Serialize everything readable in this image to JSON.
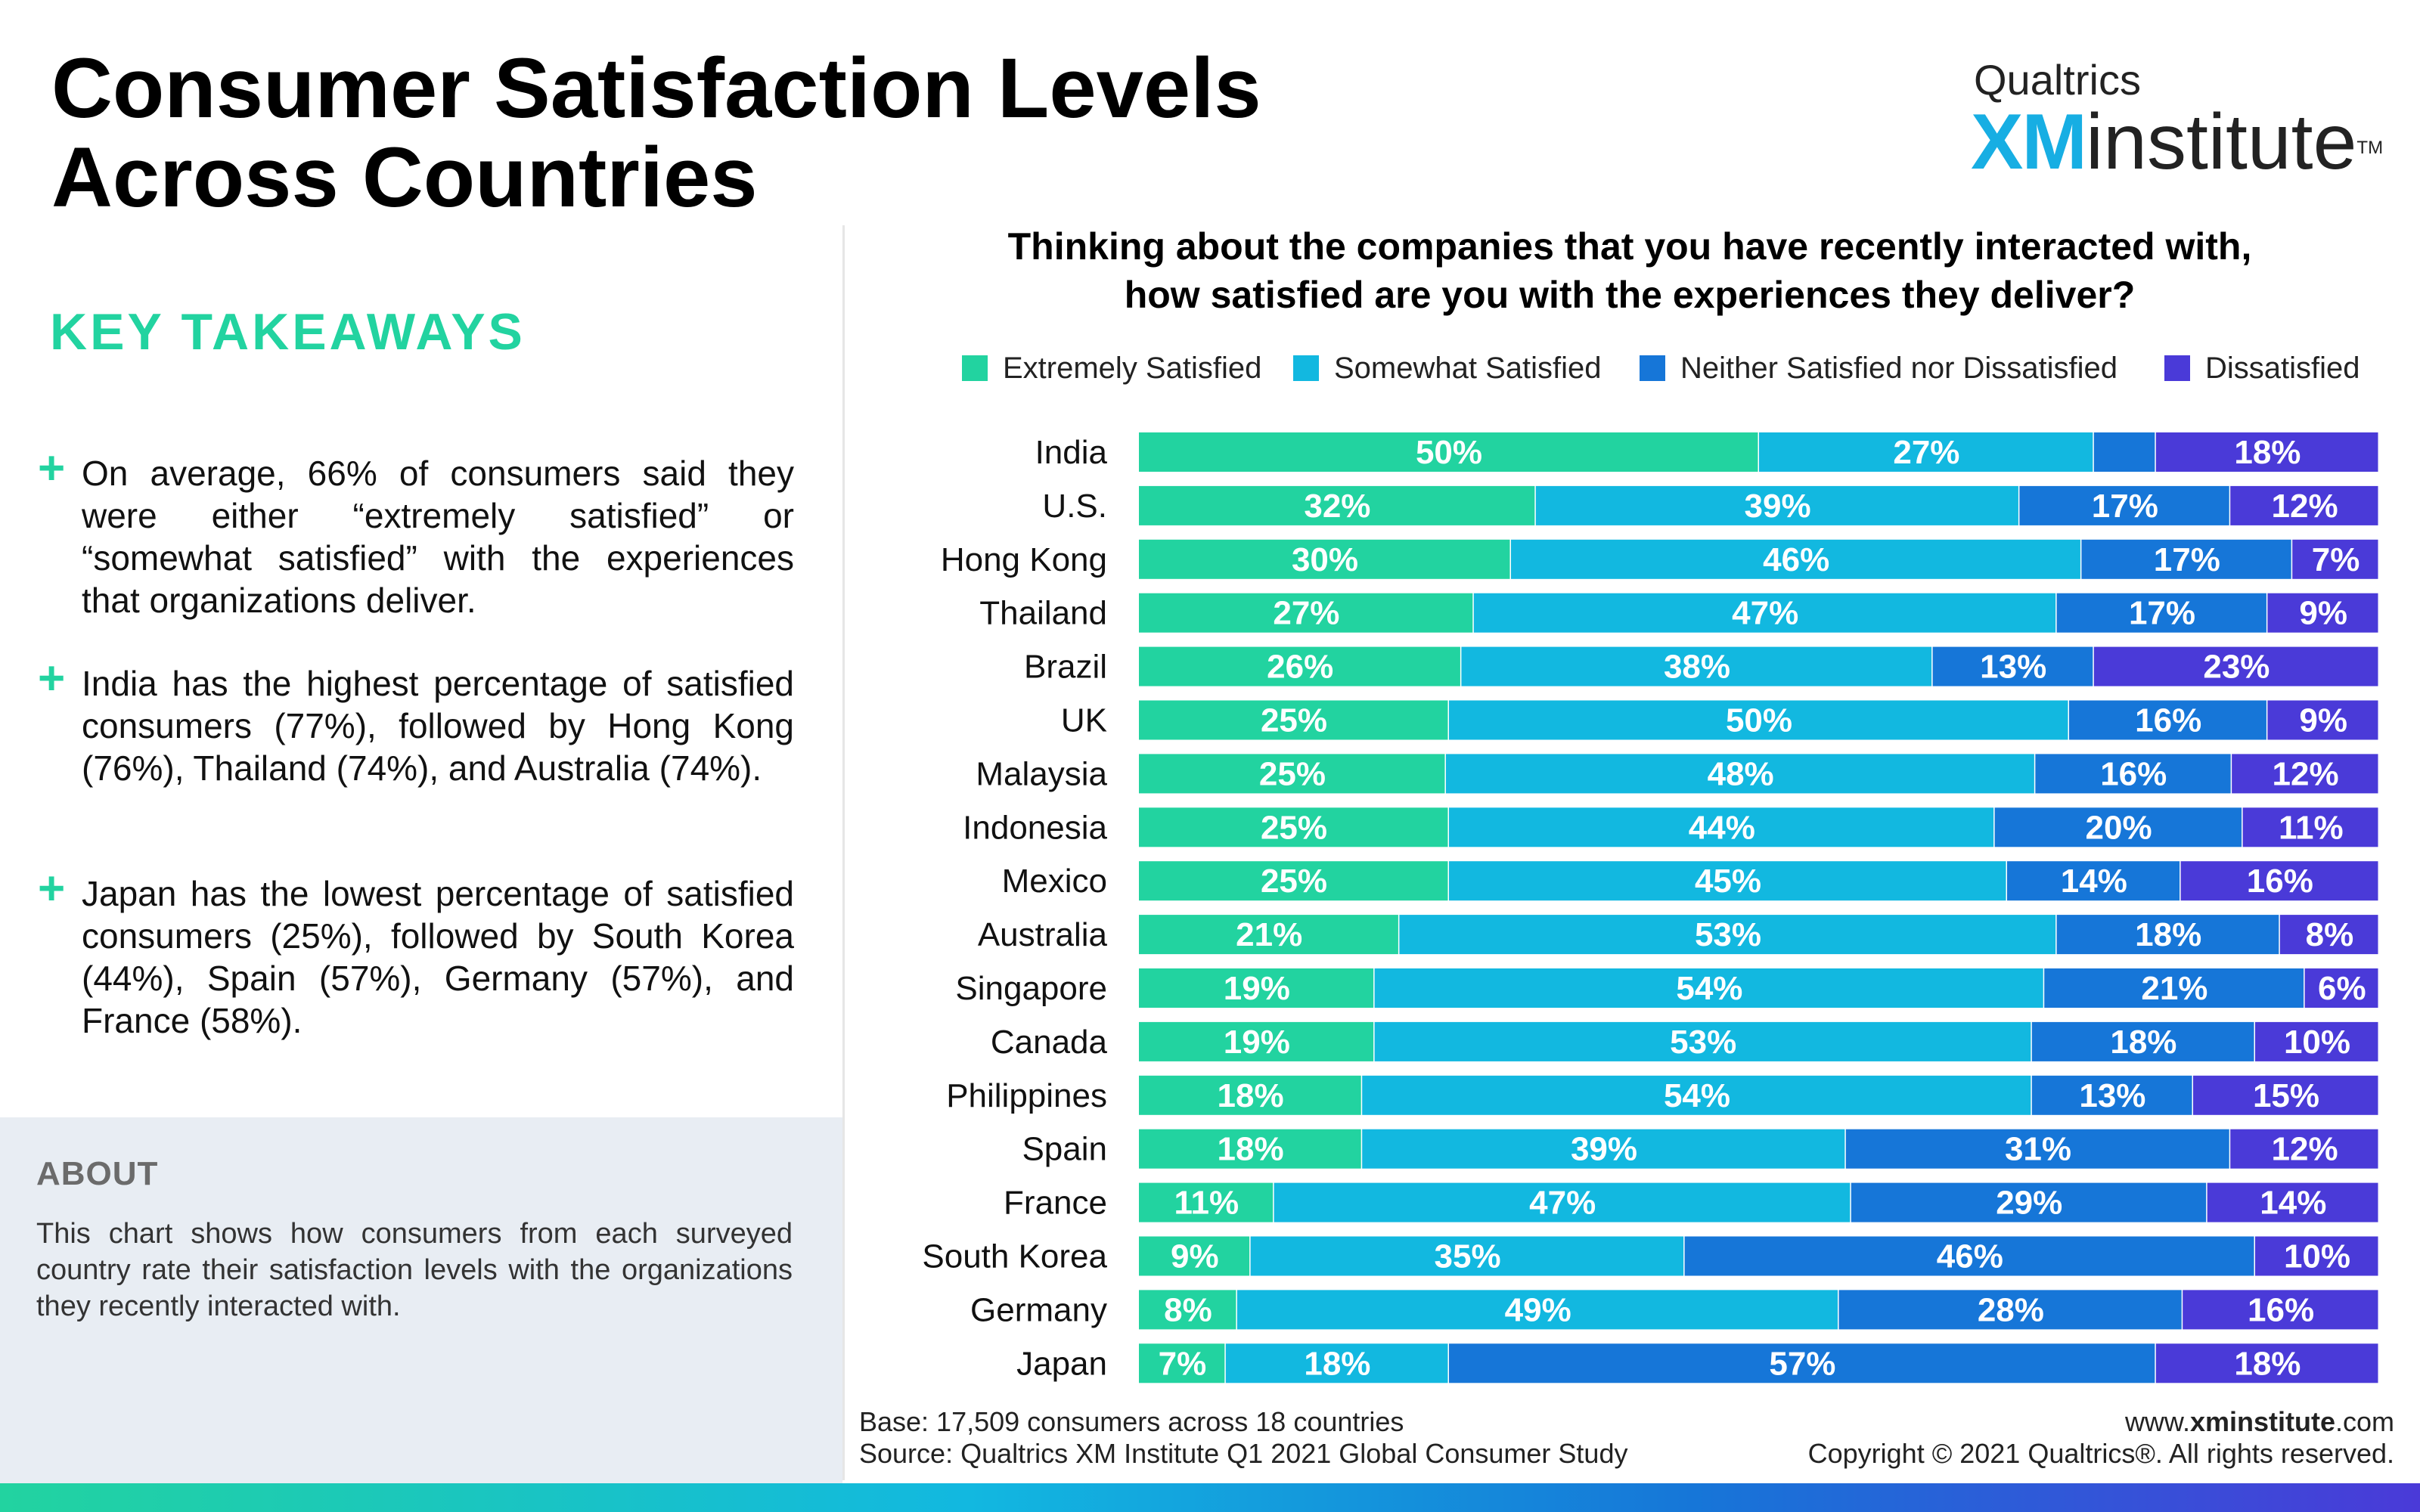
{
  "title_line1": "Consumer Satisfaction Levels",
  "title_line2": "Across Countries",
  "brand": {
    "company": "Qualtrics",
    "xm": "XM",
    "institute": "institute",
    "tm": "TM"
  },
  "takeaways": {
    "heading": "KEY TAKEAWAYS",
    "items": [
      "On average, 66% of consumers said they were either “extremely satisfied” or “somewhat satisfied” with the experiences that organizations deliver.",
      "India has the highest percentage of satisfied consumers (77%), followed by Hong Kong (76%), Thailand (74%), and Australia (74%).",
      "Japan has the lowest percentage of satisfied consumers (25%), followed by South Korea (44%), Spain (57%), Germany (57%), and France (58%)."
    ]
  },
  "about": {
    "heading": "ABOUT",
    "text": "This chart shows how consumers from each surveyed country rate their satisfaction levels with the organizations they recently interacted with."
  },
  "footer": {
    "base": "Base: 17,509 consumers across 18 countries",
    "source": "Source: Qualtrics XM Institute Q1 2021 Global Consumer Study",
    "url_prefix": "www.",
    "url_bold": "xminstitute",
    "url_suffix": ".com",
    "copyright": "Copyright © 2021 Qualtrics®. All rights reserved."
  },
  "colors": {
    "extremely_satisfied": "#22d3a0",
    "somewhat_satisfied": "#12b8e0",
    "neither": "#1676d8",
    "dissatisfied": "#4a3ad8",
    "takeaway_accent": "#22d3a0"
  },
  "chart_data": {
    "type": "bar",
    "orientation": "horizontal",
    "stacked": true,
    "title_line1": "Thinking about the companies that you have recently interacted with,",
    "title_line2": "how satisfied are you with the experiences they deliver?",
    "legend_position": "top",
    "grid": false,
    "categories": [
      "India",
      "U.S.",
      "Hong Kong",
      "Thailand",
      "Brazil",
      "UK",
      "Malaysia",
      "Indonesia",
      "Mexico",
      "Australia",
      "Singapore",
      "Canada",
      "Philippines",
      "Spain",
      "France",
      "South Korea",
      "Germany",
      "Japan"
    ],
    "series": [
      {
        "name": "Extremely Satisfied",
        "values": [
          50,
          32,
          30,
          27,
          26,
          25,
          25,
          25,
          25,
          21,
          19,
          19,
          18,
          18,
          11,
          9,
          8,
          7
        ]
      },
      {
        "name": "Somewhat Satisfied",
        "values": [
          27,
          39,
          46,
          47,
          38,
          50,
          48,
          44,
          45,
          53,
          54,
          53,
          54,
          39,
          47,
          35,
          49,
          18
        ]
      },
      {
        "name": "Neither Satisfied nor Dissatisfied",
        "values": [
          5,
          17,
          17,
          17,
          13,
          16,
          16,
          20,
          14,
          18,
          21,
          18,
          13,
          31,
          29,
          46,
          28,
          57
        ]
      },
      {
        "name": "Dissatisfied",
        "values": [
          18,
          12,
          7,
          9,
          23,
          9,
          12,
          11,
          16,
          8,
          6,
          10,
          15,
          12,
          14,
          10,
          16,
          18
        ]
      }
    ],
    "labels": [
      [
        "50%",
        "27%",
        "",
        "18%"
      ],
      [
        "32%",
        "39%",
        "17%",
        "12%"
      ],
      [
        "30%",
        "46%",
        "17%",
        "7%"
      ],
      [
        "27%",
        "47%",
        "17%",
        "9%"
      ],
      [
        "26%",
        "38%",
        "13%",
        "23%"
      ],
      [
        "25%",
        "50%",
        "16%",
        "9%"
      ],
      [
        "25%",
        "48%",
        "16%",
        "12%"
      ],
      [
        "25%",
        "44%",
        "20%",
        "11%"
      ],
      [
        "25%",
        "45%",
        "14%",
        "16%"
      ],
      [
        "21%",
        "53%",
        "18%",
        "8%"
      ],
      [
        "19%",
        "54%",
        "21%",
        "6%"
      ],
      [
        "19%",
        "53%",
        "18%",
        "10%"
      ],
      [
        "18%",
        "54%",
        "13%",
        "15%"
      ],
      [
        "18%",
        "39%",
        "31%",
        "12%"
      ],
      [
        "11%",
        "47%",
        "29%",
        "14%"
      ],
      [
        "9%",
        "35%",
        "46%",
        "10%"
      ],
      [
        "8%",
        "49%",
        "28%",
        "16%"
      ],
      [
        "7%",
        "18%",
        "57%",
        "18%"
      ]
    ]
  }
}
